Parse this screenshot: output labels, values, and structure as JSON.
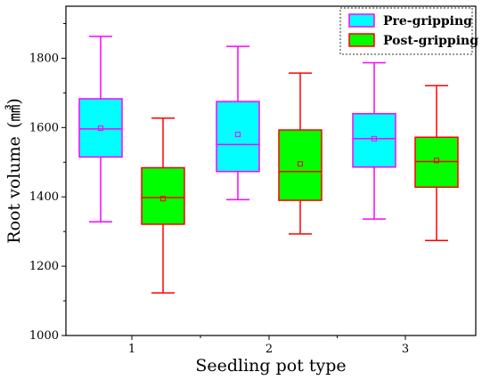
{
  "chart_data": {
    "type": "box",
    "title": "",
    "xlabel": "Seedling pot type",
    "ylabel": "Root volume (mm³)",
    "ylabel_base": "Root volume",
    "ylabel_unit": "(㎣)",
    "ylim": [
      1000,
      1950
    ],
    "yticks": [
      1000,
      1200,
      1400,
      1600,
      1800
    ],
    "categories": [
      "1",
      "2",
      "3"
    ],
    "legend_position": "top-right",
    "series": [
      {
        "name": "Pre-gripping",
        "fill": "#00ffff",
        "stroke": "#ff00ff",
        "boxes": [
          {
            "category": "1",
            "min": 1328,
            "q1": 1515,
            "median": 1596,
            "mean": 1598,
            "q3": 1683,
            "max": 1863
          },
          {
            "category": "2",
            "min": 1392,
            "q1": 1473,
            "median": 1551,
            "mean": 1580,
            "q3": 1675,
            "max": 1834
          },
          {
            "category": "3",
            "min": 1336,
            "q1": 1486,
            "median": 1568,
            "mean": 1568,
            "q3": 1640,
            "max": 1787
          }
        ]
      },
      {
        "name": "Post-gripping",
        "fill": "#00ff00",
        "stroke": "#ff0000",
        "boxes": [
          {
            "category": "1",
            "min": 1123,
            "q1": 1321,
            "median": 1398,
            "mean": 1395,
            "q3": 1484,
            "max": 1627
          },
          {
            "category": "2",
            "min": 1293,
            "q1": 1390,
            "median": 1473,
            "mean": 1495,
            "q3": 1593,
            "max": 1757
          },
          {
            "category": "3",
            "min": 1274,
            "q1": 1428,
            "median": 1502,
            "mean": 1505,
            "q3": 1572,
            "max": 1721
          }
        ]
      }
    ]
  }
}
